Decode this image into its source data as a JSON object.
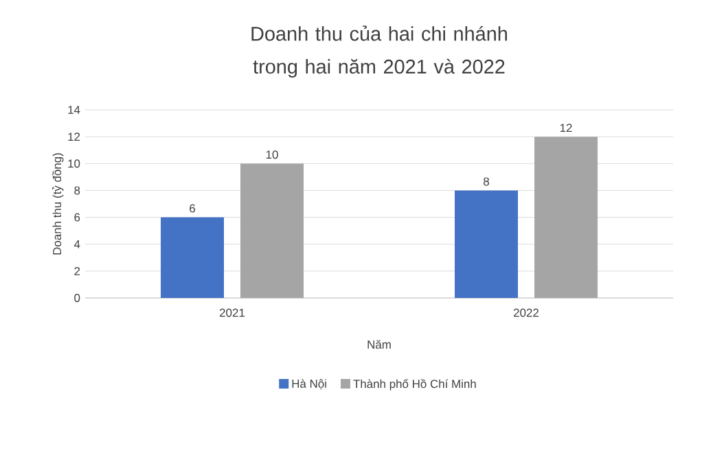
{
  "chart_data": {
    "type": "bar",
    "title": "Doanh thu của hai chi nhánh trong hai năm 2021 và 2022",
    "xlabel": "Năm",
    "ylabel": "Doanh thu (tỷ đồng)",
    "categories": [
      "2021",
      "2022"
    ],
    "series": [
      {
        "name": "Hà Nội",
        "color": "#4472c4",
        "values": [
          6,
          8
        ]
      },
      {
        "name": "Thành phố Hồ Chí Minh",
        "color": "#a5a5a5",
        "values": [
          10,
          12
        ]
      }
    ],
    "ylim": [
      0,
      14
    ],
    "yticks": [
      0,
      2,
      4,
      6,
      8,
      10,
      12,
      14
    ],
    "grid": "y",
    "legend": "bottom",
    "data_labels": true
  }
}
